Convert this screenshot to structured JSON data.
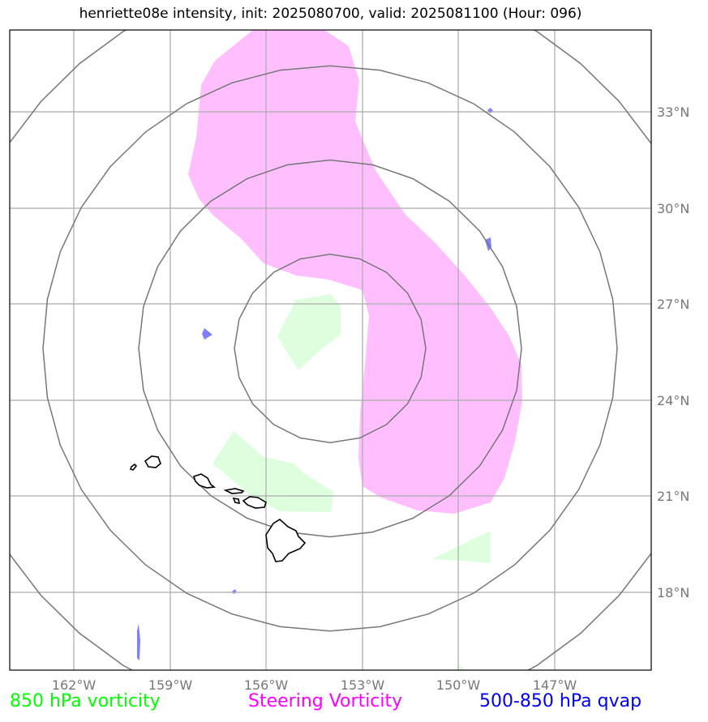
{
  "title": "henriette08e intensity, init: 2025080700, valid: 2025081100 (Hour: 096)",
  "longitude_labels": [
    "162°W",
    "159°W",
    "156°W",
    "153°W",
    "150°W",
    "147°W"
  ],
  "latitude_labels": [
    "33°N",
    "30°N",
    "27°N",
    "24°N",
    "21°N",
    "18°N"
  ],
  "legend": [
    {
      "label": "850 hPa vorticity",
      "color": "#00ff00"
    },
    {
      "label": "Steering Vorticity",
      "color": "#ff00ff"
    },
    {
      "label": "500-850 hPa qvap",
      "color": "#0000ff"
    }
  ],
  "colors": {
    "vorticity_fill": "#ddffdd",
    "steering_fill": "#ffbfff",
    "qvap_fill": "#7f7fff",
    "range_rings": "#777777",
    "gridlines": "#aaaaaa",
    "coastline": "#000000"
  },
  "features": {
    "range_rings": 4,
    "region": "Hawaiian Islands"
  }
}
